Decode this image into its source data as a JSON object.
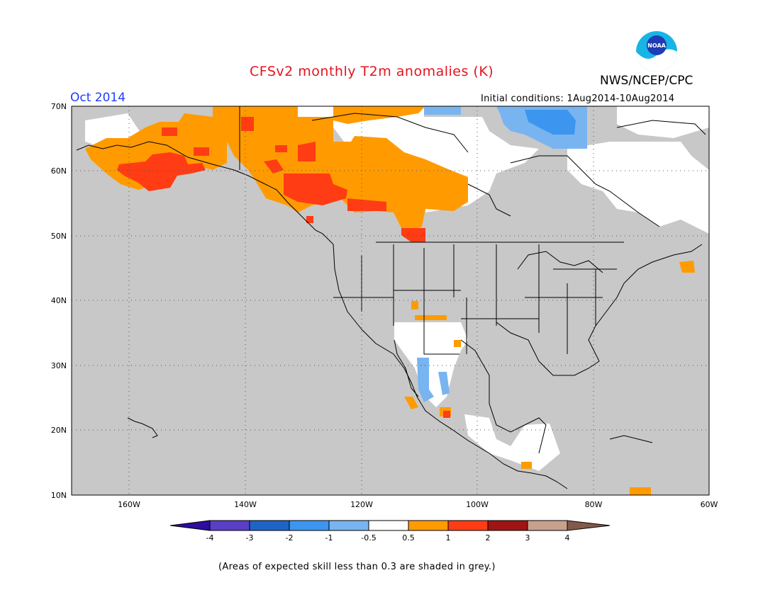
{
  "title": "CFSv2 monthly T2m anomalies (K)",
  "agency": "NWS/NCEP/CPC",
  "logo_text": "NOAA",
  "period": "Oct 2014",
  "initial_conditions": "Initial conditions: 1Aug2014-10Aug2014",
  "footnote": "(Areas of expected skill less than 0.3 are shaded in grey.)",
  "map": {
    "region": "North America",
    "lat_labels": [
      "70N",
      "60N",
      "50N",
      "40N",
      "30N",
      "20N",
      "10N"
    ],
    "lon_labels": [
      "160W",
      "140W",
      "120W",
      "100W",
      "80W",
      "60W"
    ],
    "colors": {
      "low_skill": "#c8c8c8",
      "ocean": "#c8c8c8",
      "gridline": "#777777"
    }
  },
  "colorbar": {
    "tick_labels": [
      "-4",
      "-3",
      "-2",
      "-1",
      "-0.5",
      "0.5",
      "1",
      "2",
      "3",
      "4"
    ],
    "colors": [
      "#2c0d9c",
      "#5a3ec8",
      "#1e64c8",
      "#3c96f0",
      "#78b4f0",
      "#ffffff",
      "#ff9b00",
      "#ff3c14",
      "#a01414",
      "#c8a08c",
      "#825a4b"
    ]
  }
}
